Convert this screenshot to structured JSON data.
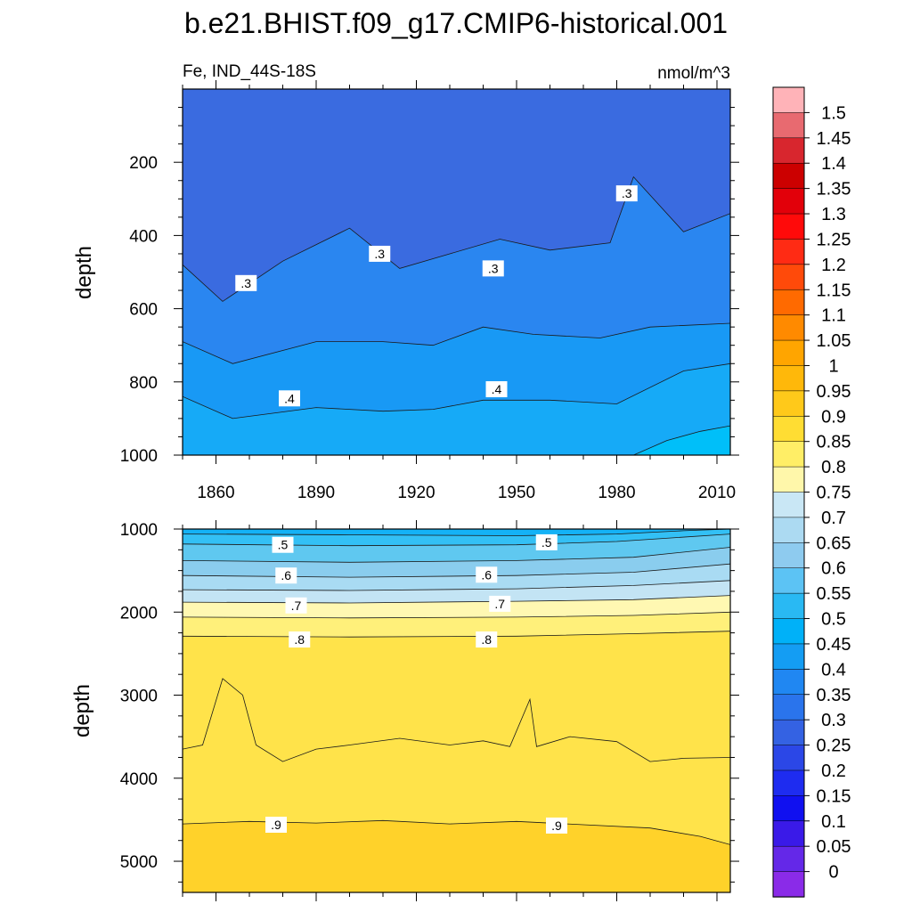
{
  "figure": {
    "title": "b.e21.BHIST.f09_g17.CMIP6-historical.001",
    "variable_region": "Fe, IND_44S-18S",
    "units": "nmol/m^3"
  },
  "chart_data": [
    {
      "type": "heatmap",
      "panel": "upper",
      "variable": "Fe",
      "region": "IND_44S-18S",
      "units": "nmol/m^3",
      "xlabel": "",
      "ylabel": "depth",
      "xlim": [
        1850,
        2014
      ],
      "ylim": [
        0,
        1000
      ],
      "y_inverted": true,
      "x_ticks": [
        1860,
        1890,
        1920,
        1950,
        1980,
        2010
      ],
      "y_ticks": [
        200,
        400,
        600,
        800,
        1000
      ],
      "contour_labels": [
        {
          "text": ".3",
          "x": 1869,
          "y": 530
        },
        {
          "text": ".3",
          "x": 1909,
          "y": 450
        },
        {
          "text": ".3",
          "x": 1943,
          "y": 490
        },
        {
          "text": ".3",
          "x": 1983,
          "y": 285
        },
        {
          "text": ".4",
          "x": 1882,
          "y": 845
        },
        {
          "text": ".4",
          "x": 1944,
          "y": 820
        }
      ],
      "isolines": [
        {
          "level": 0.3,
          "depth_by_year": [
            [
              1850,
              480
            ],
            [
              1862,
              580
            ],
            [
              1880,
              470
            ],
            [
              1900,
              380
            ],
            [
              1915,
              490
            ],
            [
              1930,
              450
            ],
            [
              1945,
              410
            ],
            [
              1960,
              440
            ],
            [
              1978,
              420
            ],
            [
              1985,
              240
            ],
            [
              2000,
              390
            ],
            [
              2014,
              340
            ]
          ]
        },
        {
          "level": 0.35,
          "depth_by_year": [
            [
              1850,
              690
            ],
            [
              1865,
              750
            ],
            [
              1890,
              690
            ],
            [
              1910,
              690
            ],
            [
              1925,
              700
            ],
            [
              1940,
              650
            ],
            [
              1955,
              670
            ],
            [
              1975,
              680
            ],
            [
              1990,
              650
            ],
            [
              2014,
              640
            ]
          ]
        },
        {
          "level": 0.4,
          "depth_by_year": [
            [
              1850,
              840
            ],
            [
              1865,
              900
            ],
            [
              1890,
              870
            ],
            [
              1910,
              880
            ],
            [
              1925,
              875
            ],
            [
              1940,
              850
            ],
            [
              1960,
              850
            ],
            [
              1980,
              860
            ],
            [
              2000,
              770
            ],
            [
              2014,
              750
            ]
          ]
        },
        {
          "level": 0.45,
          "depth_by_year": [
            [
              1985,
              1000
            ],
            [
              1995,
              960
            ],
            [
              2005,
              935
            ],
            [
              2014,
              920
            ]
          ]
        }
      ],
      "fill_bands": [
        {
          "color": "#3a6be0",
          "top": 0
        },
        {
          "color": "#2a86f0",
          "top_line": 0
        },
        {
          "color": "#1899f5",
          "top_line": 1
        },
        {
          "color": "#16aaf7",
          "top_line": 2
        },
        {
          "color": "#00bff9",
          "top_line": 3
        }
      ]
    },
    {
      "type": "heatmap",
      "panel": "lower",
      "variable": "Fe",
      "units": "nmol/m^3",
      "xlabel": "",
      "ylabel": "depth",
      "xlim": [
        1850,
        2014
      ],
      "ylim": [
        1000,
        5375
      ],
      "y_inverted": true,
      "x_ticks": [
        1860,
        1890,
        1920,
        1950,
        1980,
        2010
      ],
      "y_ticks": [
        1000,
        2000,
        3000,
        4000,
        5000
      ],
      "contour_labels": [
        {
          "text": ".5",
          "x": 1880,
          "y": 1190
        },
        {
          "text": ".5",
          "x": 1959,
          "y": 1160
        },
        {
          "text": ".6",
          "x": 1881,
          "y": 1560
        },
        {
          "text": ".6",
          "x": 1941,
          "y": 1550
        },
        {
          "text": ".7",
          "x": 1884,
          "y": 1920
        },
        {
          "text": ".7",
          "x": 1945,
          "y": 1900
        },
        {
          "text": ".8",
          "x": 1885,
          "y": 2330
        },
        {
          "text": ".8",
          "x": 1941,
          "y": 2330
        },
        {
          "text": ".9",
          "x": 1878,
          "y": 4560
        },
        {
          "text": ".9",
          "x": 1962,
          "y": 4570
        }
      ],
      "isolines": [
        {
          "level": 0.45,
          "depth_by_year": [
            [
              1850,
              1060
            ],
            [
              1900,
              1070
            ],
            [
              1950,
              1080
            ],
            [
              1980,
              1060
            ],
            [
              2000,
              1020
            ],
            [
              2014,
              1000
            ]
          ]
        },
        {
          "level": 0.5,
          "depth_by_year": [
            [
              1850,
              1180
            ],
            [
              1900,
              1200
            ],
            [
              1950,
              1190
            ],
            [
              1980,
              1150
            ],
            [
              2014,
              1060
            ]
          ]
        },
        {
          "level": 0.55,
          "depth_by_year": [
            [
              1850,
              1380
            ],
            [
              1900,
              1400
            ],
            [
              1950,
              1380
            ],
            [
              1985,
              1340
            ],
            [
              2014,
              1220
            ]
          ]
        },
        {
          "level": 0.6,
          "depth_by_year": [
            [
              1850,
              1560
            ],
            [
              1900,
              1580
            ],
            [
              1950,
              1560
            ],
            [
              1985,
              1520
            ],
            [
              2014,
              1420
            ]
          ]
        },
        {
          "level": 0.65,
          "depth_by_year": [
            [
              1850,
              1730
            ],
            [
              1900,
              1740
            ],
            [
              1950,
              1720
            ],
            [
              1985,
              1680
            ],
            [
              2014,
              1620
            ]
          ]
        },
        {
          "level": 0.7,
          "depth_by_year": [
            [
              1850,
              1880
            ],
            [
              1900,
              1890
            ],
            [
              1950,
              1870
            ],
            [
              1985,
              1850
            ],
            [
              2014,
              1800
            ]
          ]
        },
        {
          "level": 0.75,
          "depth_by_year": [
            [
              1850,
              2060
            ],
            [
              1900,
              2070
            ],
            [
              1950,
              2060
            ],
            [
              1985,
              2040
            ],
            [
              2014,
              2000
            ]
          ]
        },
        {
          "level": 0.8,
          "depth_by_year": [
            [
              1850,
              2290
            ],
            [
              1900,
              2300
            ],
            [
              1950,
              2290
            ],
            [
              1985,
              2260
            ],
            [
              2014,
              2230
            ]
          ]
        },
        {
          "level": 0.85,
          "depth_by_year": [
            [
              1850,
              3650
            ],
            [
              1856,
              3600
            ],
            [
              1862,
              2800
            ],
            [
              1868,
              3000
            ],
            [
              1872,
              3600
            ],
            [
              1880,
              3800
            ],
            [
              1890,
              3650
            ],
            [
              1900,
              3600
            ],
            [
              1915,
              3520
            ],
            [
              1930,
              3600
            ],
            [
              1940,
              3550
            ],
            [
              1948,
              3620
            ],
            [
              1954,
              3050
            ],
            [
              1956,
              3620
            ],
            [
              1966,
              3500
            ],
            [
              1980,
              3560
            ],
            [
              1990,
              3800
            ],
            [
              2000,
              3760
            ],
            [
              2014,
              3750
            ]
          ]
        },
        {
          "level": 0.9,
          "depth_by_year": [
            [
              1850,
              4550
            ],
            [
              1870,
              4520
            ],
            [
              1890,
              4540
            ],
            [
              1910,
              4510
            ],
            [
              1930,
              4550
            ],
            [
              1950,
              4520
            ],
            [
              1970,
              4560
            ],
            [
              1990,
              4600
            ],
            [
              2005,
              4700
            ],
            [
              2014,
              4800
            ]
          ]
        }
      ],
      "fill_bands": [
        {
          "color": "#14b2f6",
          "top": 1000
        },
        {
          "color": "#33c0f5",
          "top_line": 0
        },
        {
          "color": "#5fc8f0",
          "top_line": 1
        },
        {
          "color": "#8acdee",
          "top_line": 2
        },
        {
          "color": "#a9dbf3",
          "top_line": 3
        },
        {
          "color": "#c3e4f4",
          "top_line": 4
        },
        {
          "color": "#fff8b2",
          "top_line": 5
        },
        {
          "color": "#fff07a",
          "top_line": 6
        },
        {
          "color": "#ffe34a",
          "top_line": 7
        },
        {
          "color": "#ffd22a",
          "top_line": 9
        }
      ]
    }
  ],
  "colorbar": {
    "labels": [
      "1.5",
      "1.45",
      "1.4",
      "1.35",
      "1.3",
      "1.25",
      "1.2",
      "1.15",
      "1.1",
      "1.05",
      "1",
      "0.95",
      "0.9",
      "0.85",
      "0.8",
      "0.75",
      "0.7",
      "0.65",
      "0.6",
      "0.55",
      "0.5",
      "0.45",
      "0.4",
      "0.35",
      "0.3",
      "0.25",
      "0.2",
      "0.15",
      "0.1",
      "0.05",
      "0"
    ],
    "colors": [
      "#ffb3b8",
      "#e86a70",
      "#d8262e",
      "#cc0000",
      "#e2000a",
      "#ff0a0a",
      "#ff2b14",
      "#ff4a0a",
      "#ff6a00",
      "#ff8a00",
      "#ffa500",
      "#ffb80a",
      "#ffc91a",
      "#ffdd33",
      "#ffee66",
      "#fff7aa",
      "#c9e7f5",
      "#acdaf2",
      "#8ecbef",
      "#5cc3f4",
      "#29b9f3",
      "#00b1f8",
      "#149df3",
      "#2087f2",
      "#2a74ec",
      "#3462e3",
      "#2b47e7",
      "#1e2cf0",
      "#1010f0",
      "#3a1ae8",
      "#6428e8",
      "#8a2be8"
    ]
  }
}
